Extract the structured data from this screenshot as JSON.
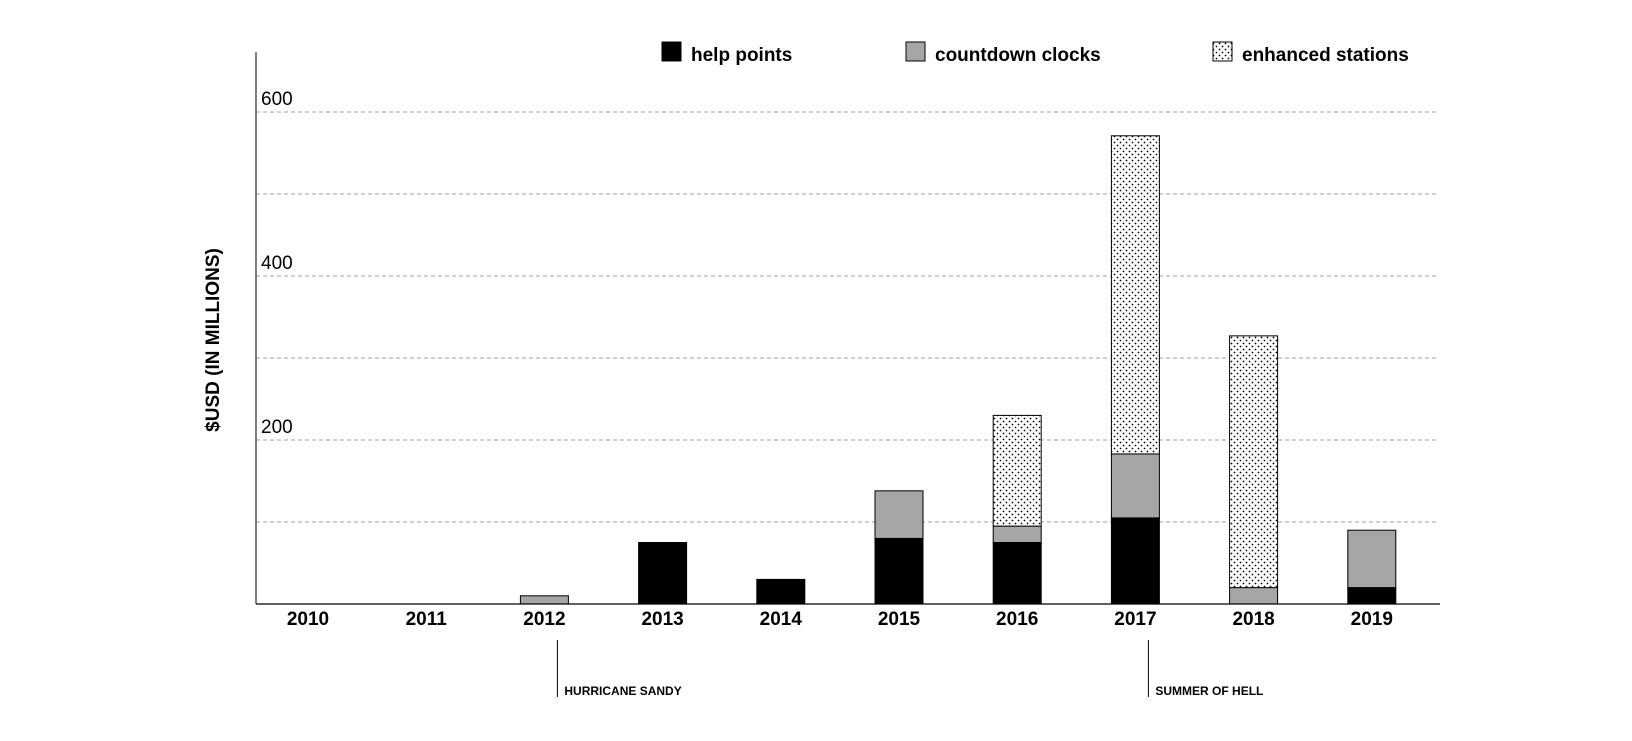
{
  "chart_data": {
    "type": "bar",
    "stacked": true,
    "title": "",
    "xlabel": "",
    "ylabel": "$USD (IN MILLIONS)",
    "ylim": [
      0,
      600
    ],
    "y_gridline_step": 100,
    "y_tick_labels": [
      "200",
      "400",
      "600"
    ],
    "y_tick_values": [
      200,
      400,
      600
    ],
    "grid": "horizontal dashed",
    "legend_position": "top",
    "categories": [
      "2010",
      "2011",
      "2012",
      "2013",
      "2014",
      "2015",
      "2016",
      "2017",
      "2018",
      "2019"
    ],
    "series": [
      {
        "name": "help points",
        "fill": "solid-black",
        "color": "#000000",
        "values": [
          0,
          0,
          0,
          75,
          30,
          80,
          75,
          105,
          0,
          20
        ]
      },
      {
        "name": "countdown clocks",
        "fill": "solid-gray",
        "color": "#a6a6a6",
        "values": [
          0,
          0,
          10,
          0,
          0,
          58,
          20,
          78,
          20,
          70
        ]
      },
      {
        "name": "enhanced stations",
        "fill": "dot-pattern",
        "color": "#ffffff",
        "values": [
          0,
          0,
          0,
          0,
          0,
          0,
          135,
          388,
          307,
          0
        ]
      }
    ],
    "annotations": [
      {
        "category": "2012",
        "label": "HURRICANE SANDY"
      },
      {
        "category": "2017",
        "label": "SUMMER OF HELL"
      }
    ]
  }
}
